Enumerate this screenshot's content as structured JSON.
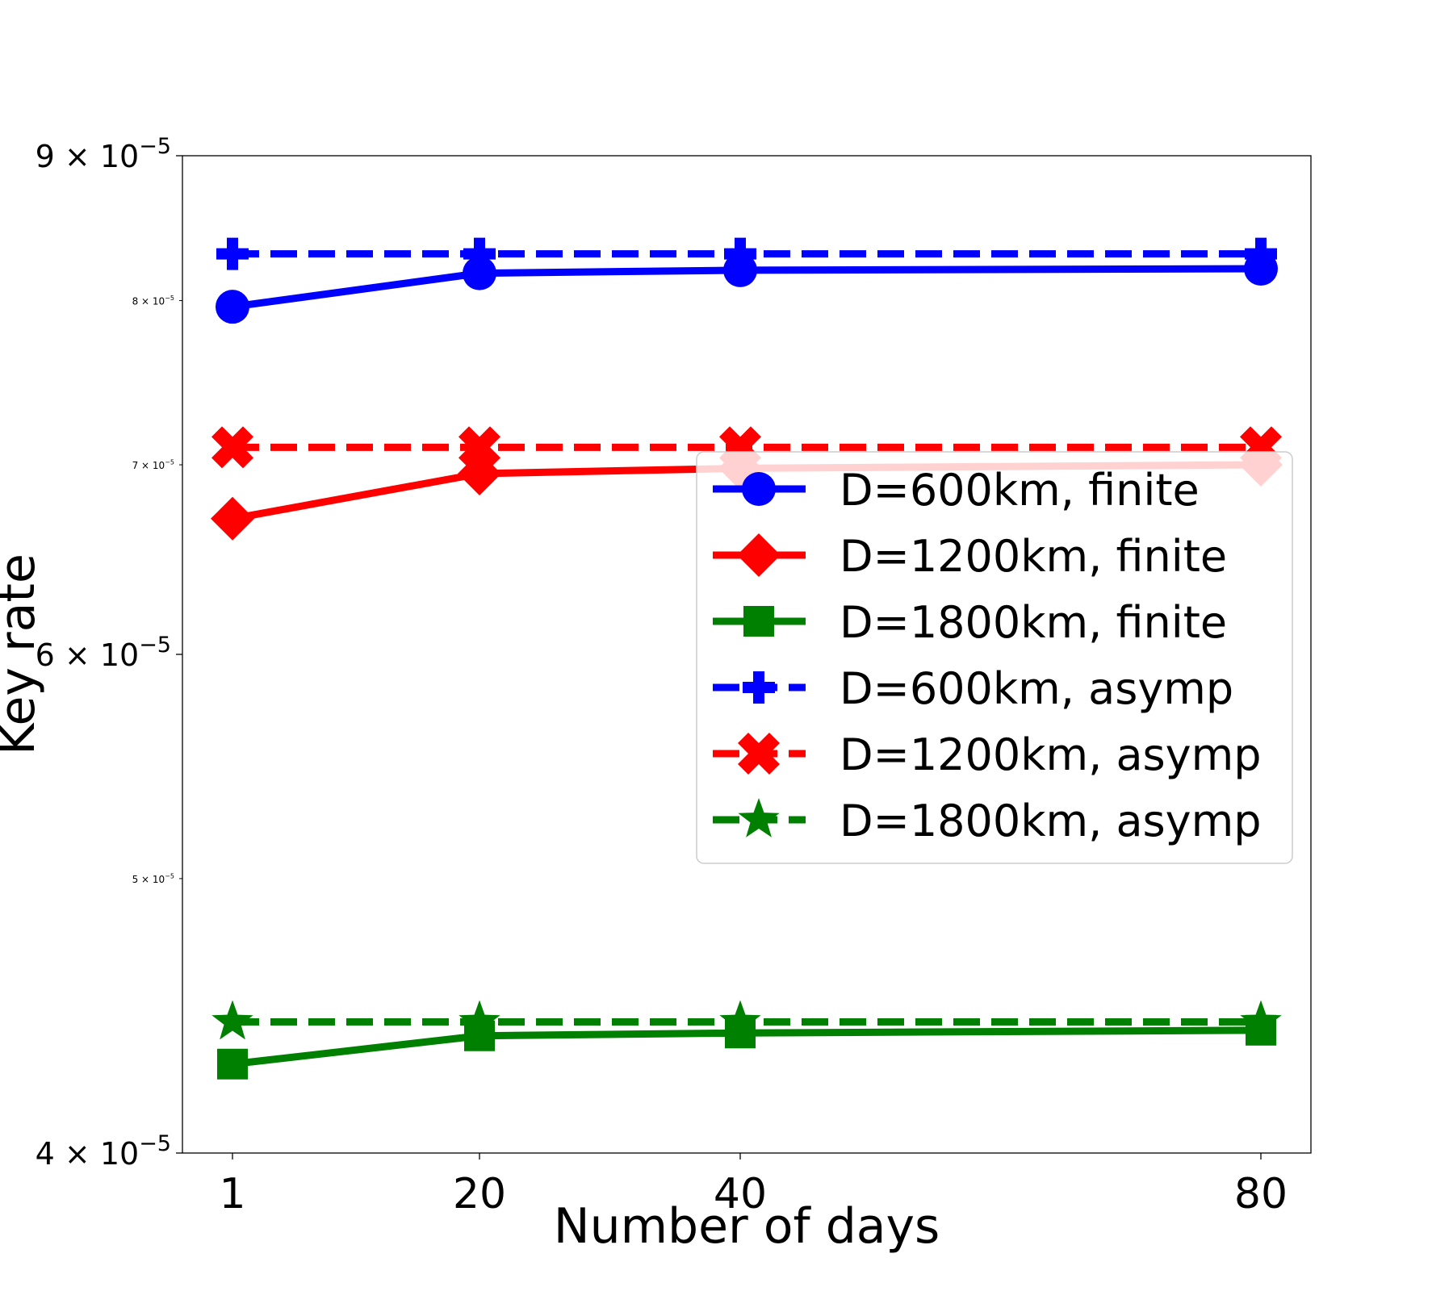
{
  "chart_data": {
    "type": "line",
    "title": "",
    "xlabel": "Number of days",
    "ylabel": "Key rate",
    "yscale": "log",
    "ylim": [
      4e-05,
      9e-05
    ],
    "x": [
      1,
      20,
      40,
      80
    ],
    "x_tick_labels": [
      "1",
      "20",
      "40",
      "80"
    ],
    "y_major_ticks": [
      {
        "value": 9e-05,
        "mantissa": "9",
        "times": "×",
        "base": "10",
        "exp": "−5"
      },
      {
        "value": 6e-05,
        "mantissa": "6",
        "times": "×",
        "base": "10",
        "exp": "−5"
      },
      {
        "value": 4e-05,
        "mantissa": "4",
        "times": "×",
        "base": "10",
        "exp": "−5"
      }
    ],
    "y_minor_ticks": [
      {
        "value": 8e-05,
        "mantissa": "8",
        "times": "×",
        "base": "10",
        "exp": "−5"
      },
      {
        "value": 7e-05,
        "mantissa": "7",
        "times": "×",
        "base": "10",
        "exp": "−5"
      },
      {
        "value": 5e-05,
        "mantissa": "5",
        "times": "×",
        "base": "10",
        "exp": "−5"
      }
    ],
    "grid": false,
    "legend_position": "right",
    "series": [
      {
        "name": "D=600km, finite",
        "color": "#0000ff",
        "marker": "circle",
        "dash": "solid",
        "values": [
          7.96e-05,
          8.18e-05,
          8.2e-05,
          8.21e-05
        ]
      },
      {
        "name": "D=1200km, finite",
        "color": "#ff0000",
        "marker": "diamond",
        "dash": "solid",
        "values": [
          6.7e-05,
          6.95e-05,
          6.98e-05,
          7e-05
        ]
      },
      {
        "name": "D=1800km, finite",
        "color": "#008000",
        "marker": "square",
        "dash": "solid",
        "values": [
          4.3e-05,
          4.4e-05,
          4.41e-05,
          4.42e-05
        ]
      },
      {
        "name": "D=600km, asymp",
        "color": "#0000ff",
        "marker": "plus",
        "dash": "dashed",
        "values": [
          8.31e-05,
          8.31e-05,
          8.31e-05,
          8.31e-05
        ]
      },
      {
        "name": "D=1200km, asymp",
        "color": "#ff0000",
        "marker": "x",
        "dash": "dashed",
        "values": [
          7.1e-05,
          7.1e-05,
          7.1e-05,
          7.1e-05
        ]
      },
      {
        "name": "D=1800km, asymp",
        "color": "#008000",
        "marker": "star",
        "dash": "dashed",
        "values": [
          4.45e-05,
          4.45e-05,
          4.45e-05,
          4.45e-05
        ]
      }
    ]
  }
}
